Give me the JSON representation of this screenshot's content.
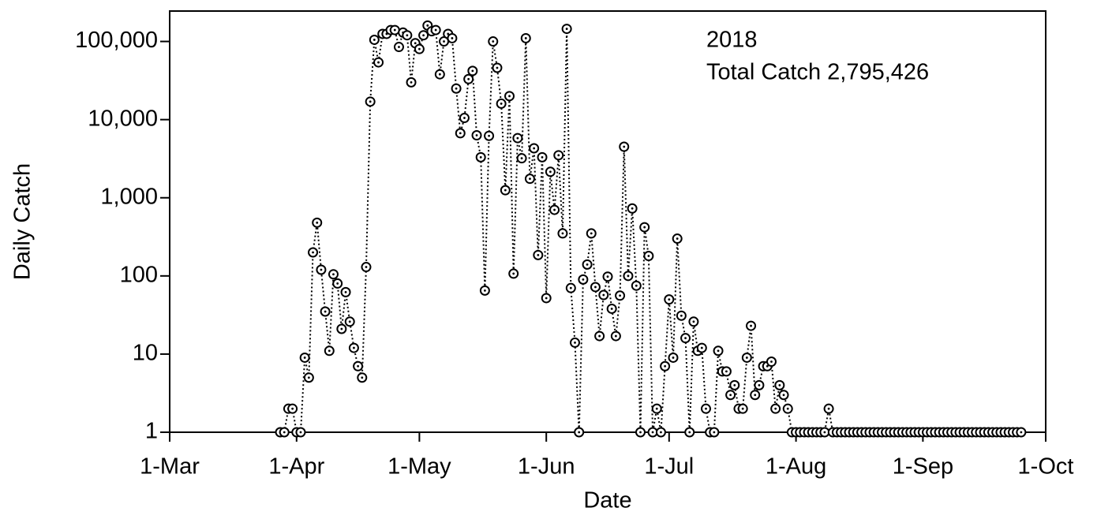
{
  "chart_data": {
    "type": "line",
    "x_label": "Date",
    "y_label": "Daily Catch",
    "annotations": [
      "2018",
      "Total Catch 2,795,426"
    ],
    "log_y": true,
    "color": "#000000",
    "xlim": [
      "1-Mar",
      "1-Oct"
    ],
    "xticks": [
      "1-Mar",
      "1-Apr",
      "1-May",
      "1-Jun",
      "1-Jul",
      "1-Aug",
      "1-Sep",
      "1-Oct"
    ],
    "ylim": [
      1,
      245000
    ],
    "yticks": [
      1,
      10,
      100,
      {
        "value": 1000,
        "label": "1,000"
      },
      {
        "value": 10000,
        "label": "10,000"
      },
      {
        "value": 100000,
        "label": "100,000"
      }
    ],
    "x": [
      "28-Mar",
      "29-Mar",
      "30-Mar",
      "31-Mar",
      "1-Apr",
      "2-Apr",
      "3-Apr",
      "4-Apr",
      "5-Apr",
      "6-Apr",
      "7-Apr",
      "8-Apr",
      "9-Apr",
      "10-Apr",
      "11-Apr",
      "12-Apr",
      "13-Apr",
      "14-Apr",
      "15-Apr",
      "16-Apr",
      "17-Apr",
      "18-Apr",
      "19-Apr",
      "20-Apr",
      "21-Apr",
      "22-Apr",
      "23-Apr",
      "24-Apr",
      "25-Apr",
      "26-Apr",
      "27-Apr",
      "28-Apr",
      "29-Apr",
      "30-Apr",
      "1-May",
      "2-May",
      "3-May",
      "4-May",
      "5-May",
      "6-May",
      "7-May",
      "8-May",
      "9-May",
      "10-May",
      "11-May",
      "12-May",
      "13-May",
      "14-May",
      "15-May",
      "16-May",
      "17-May",
      "18-May",
      "19-May",
      "20-May",
      "21-May",
      "22-May",
      "23-May",
      "24-May",
      "25-May",
      "26-May",
      "27-May",
      "28-May",
      "29-May",
      "30-May",
      "31-May",
      "1-Jun",
      "2-Jun",
      "3-Jun",
      "4-Jun",
      "5-Jun",
      "6-Jun",
      "7-Jun",
      "8-Jun",
      "9-Jun",
      "10-Jun",
      "11-Jun",
      "12-Jun",
      "13-Jun",
      "14-Jun",
      "15-Jun",
      "16-Jun",
      "17-Jun",
      "18-Jun",
      "19-Jun",
      "20-Jun",
      "21-Jun",
      "22-Jun",
      "23-Jun",
      "24-Jun",
      "25-Jun",
      "26-Jun",
      "27-Jun",
      "28-Jun",
      "29-Jun",
      "30-Jun",
      "1-Jul",
      "2-Jul",
      "3-Jul",
      "4-Jul",
      "5-Jul",
      "6-Jul",
      "7-Jul",
      "8-Jul",
      "9-Jul",
      "10-Jul",
      "11-Jul",
      "12-Jul",
      "13-Jul",
      "14-Jul",
      "15-Jul",
      "16-Jul",
      "17-Jul",
      "18-Jul",
      "19-Jul",
      "20-Jul",
      "21-Jul",
      "22-Jul",
      "23-Jul",
      "24-Jul",
      "25-Jul",
      "26-Jul",
      "27-Jul",
      "28-Jul",
      "29-Jul",
      "30-Jul",
      "31-Jul",
      "1-Aug",
      "2-Aug",
      "3-Aug",
      "4-Aug",
      "5-Aug",
      "6-Aug",
      "7-Aug",
      "8-Aug",
      "9-Aug",
      "10-Aug",
      "11-Aug",
      "12-Aug",
      "13-Aug",
      "14-Aug",
      "15-Aug",
      "16-Aug",
      "17-Aug",
      "18-Aug",
      "19-Aug",
      "20-Aug",
      "21-Aug",
      "22-Aug",
      "23-Aug",
      "24-Aug",
      "25-Aug",
      "26-Aug",
      "27-Aug",
      "28-Aug",
      "29-Aug",
      "30-Aug",
      "31-Aug",
      "1-Sep",
      "2-Sep",
      "3-Sep",
      "4-Sep",
      "5-Sep",
      "6-Sep",
      "7-Sep",
      "8-Sep",
      "9-Sep",
      "10-Sep",
      "11-Sep",
      "12-Sep",
      "13-Sep",
      "14-Sep",
      "15-Sep",
      "16-Sep",
      "17-Sep",
      "18-Sep",
      "19-Sep",
      "20-Sep",
      "21-Sep",
      "22-Sep",
      "23-Sep",
      "24-Sep",
      "25-Sep"
    ],
    "values": [
      1,
      1,
      2,
      2,
      1,
      1,
      9,
      5,
      200,
      480,
      120,
      35,
      11,
      105,
      80,
      21,
      62,
      26,
      12,
      7,
      5,
      130,
      17000,
      105000,
      54000,
      125000,
      125000,
      140000,
      140000,
      85000,
      130000,
      120000,
      30000,
      95000,
      80000,
      120000,
      160000,
      135000,
      140000,
      38000,
      100000,
      125000,
      110000,
      25000,
      6700,
      10500,
      33000,
      42000,
      6300,
      3300,
      65,
      6200,
      100000,
      46000,
      16000,
      1250,
      20000,
      107,
      5800,
      3200,
      110000,
      1750,
      4300,
      185,
      3300,
      52,
      2150,
      700,
      3500,
      350,
      145000,
      70,
      14,
      1,
      90,
      140,
      350,
      72,
      17,
      57,
      98,
      38,
      17,
      56,
      4500,
      100,
      730,
      75,
      1,
      420,
      180,
      1,
      2,
      1,
      7,
      50,
      9,
      300,
      31,
      16,
      1,
      26,
      11,
      12,
      2,
      1,
      1,
      11,
      6,
      6,
      3,
      4,
      2,
      2,
      9,
      23,
      3,
      4,
      7,
      7,
      8,
      2,
      4,
      3,
      2,
      1,
      1,
      1,
      1,
      1,
      1,
      1,
      1,
      1,
      2,
      1,
      1,
      1,
      1,
      1,
      1,
      1,
      1,
      1,
      1,
      1,
      1,
      1,
      1,
      1,
      1,
      1,
      1,
      1,
      1,
      1,
      1,
      1,
      1,
      1,
      1,
      1,
      1,
      1,
      1,
      1,
      1,
      1,
      1,
      1,
      1,
      1,
      1,
      1,
      1,
      1,
      1,
      1,
      1,
      1,
      1,
      1
    ]
  }
}
